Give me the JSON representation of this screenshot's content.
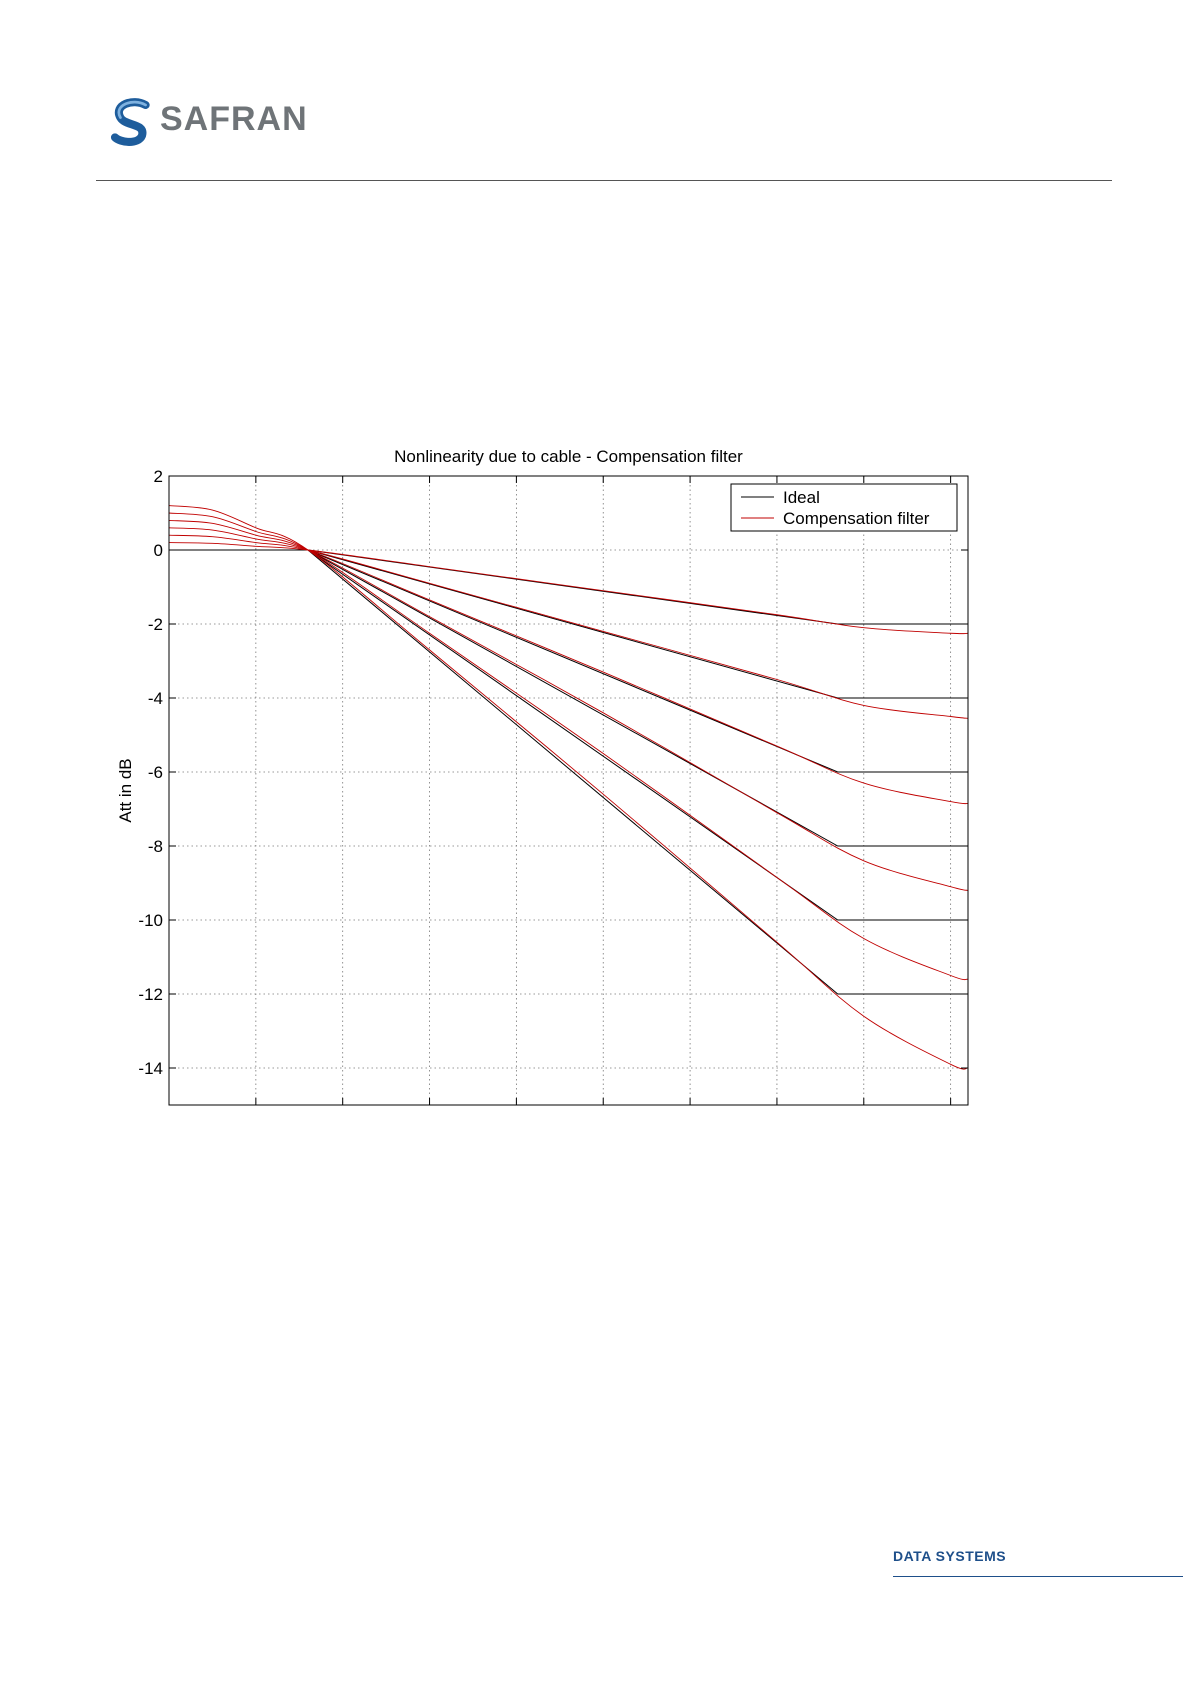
{
  "brand": {
    "name": "SAFRAN",
    "footer": "DATA SYSTEMS",
    "logo_color": "#1e5d9c",
    "accent_color": "#1e4f8a"
  },
  "chart_data": {
    "type": "line",
    "title": "Nonlinearity due to cable - Compensation filter",
    "xlabel": "",
    "ylabel": "Att in dB",
    "ylim": [
      -15,
      2
    ],
    "xlim": [
      0,
      9.2
    ],
    "yticks": [
      2,
      0,
      -2,
      -4,
      -6,
      -8,
      -10,
      -12,
      -14
    ],
    "xgrid": [
      1,
      2,
      3,
      4,
      5,
      6,
      7,
      8,
      9
    ],
    "grid": true,
    "legend": {
      "placement": "top-right",
      "entries": [
        "Ideal",
        "Compensation filter"
      ]
    },
    "series": [
      {
        "name": "Ideal",
        "color": "#000000",
        "curves": [
          [
            [
              0,
              0
            ],
            [
              1.6,
              0
            ],
            [
              7.7,
              -2
            ],
            [
              9.2,
              -2
            ]
          ],
          [
            [
              0,
              0
            ],
            [
              1.6,
              0
            ],
            [
              7.7,
              -4
            ],
            [
              9.2,
              -4
            ]
          ],
          [
            [
              0,
              0
            ],
            [
              1.6,
              0
            ],
            [
              7.7,
              -6
            ],
            [
              9.2,
              -6
            ]
          ],
          [
            [
              0,
              0
            ],
            [
              1.6,
              0
            ],
            [
              7.7,
              -8
            ],
            [
              9.2,
              -8
            ]
          ],
          [
            [
              0,
              0
            ],
            [
              1.6,
              0
            ],
            [
              7.7,
              -10
            ],
            [
              9.2,
              -10
            ]
          ],
          [
            [
              0,
              0
            ],
            [
              1.6,
              0
            ],
            [
              7.7,
              -12
            ],
            [
              9.2,
              -12
            ]
          ]
        ]
      },
      {
        "name": "Compensation filter",
        "color": "#c00000",
        "curves": [
          [
            [
              0,
              0.2
            ],
            [
              0.5,
              0.18
            ],
            [
              1.0,
              0.1
            ],
            [
              1.6,
              0
            ],
            [
              3,
              -0.45
            ],
            [
              5,
              -1.1
            ],
            [
              7,
              -1.75
            ],
            [
              8,
              -2.1
            ],
            [
              9,
              -2.25
            ],
            [
              9.2,
              -2.25
            ]
          ],
          [
            [
              0,
              0.4
            ],
            [
              0.5,
              0.36
            ],
            [
              1.0,
              0.2
            ],
            [
              1.6,
              0
            ],
            [
              3,
              -0.9
            ],
            [
              5,
              -2.2
            ],
            [
              7,
              -3.5
            ],
            [
              8,
              -4.2
            ],
            [
              9,
              -4.5
            ],
            [
              9.2,
              -4.55
            ]
          ],
          [
            [
              0,
              0.6
            ],
            [
              0.5,
              0.54
            ],
            [
              1.0,
              0.3
            ],
            [
              1.6,
              0
            ],
            [
              3,
              -1.35
            ],
            [
              5,
              -3.3
            ],
            [
              7,
              -5.3
            ],
            [
              8,
              -6.3
            ],
            [
              9,
              -6.8
            ],
            [
              9.2,
              -6.85
            ]
          ],
          [
            [
              0,
              0.8
            ],
            [
              0.5,
              0.72
            ],
            [
              1.0,
              0.4
            ],
            [
              1.6,
              0
            ],
            [
              3,
              -1.8
            ],
            [
              5,
              -4.4
            ],
            [
              7,
              -7.1
            ],
            [
              8,
              -8.4
            ],
            [
              9,
              -9.1
            ],
            [
              9.2,
              -9.2
            ]
          ],
          [
            [
              0,
              1.0
            ],
            [
              0.5,
              0.9
            ],
            [
              1.0,
              0.5
            ],
            [
              1.6,
              0
            ],
            [
              3,
              -2.25
            ],
            [
              5,
              -5.5
            ],
            [
              7,
              -8.85
            ],
            [
              8,
              -10.5
            ],
            [
              9,
              -11.5
            ],
            [
              9.2,
              -11.6
            ]
          ],
          [
            [
              0,
              1.2
            ],
            [
              0.5,
              1.08
            ],
            [
              1.0,
              0.6
            ],
            [
              1.6,
              0
            ],
            [
              3,
              -2.7
            ],
            [
              5,
              -6.6
            ],
            [
              7,
              -10.6
            ],
            [
              8,
              -12.6
            ],
            [
              9,
              -13.9
            ],
            [
              9.2,
              -14
            ]
          ]
        ]
      }
    ]
  }
}
